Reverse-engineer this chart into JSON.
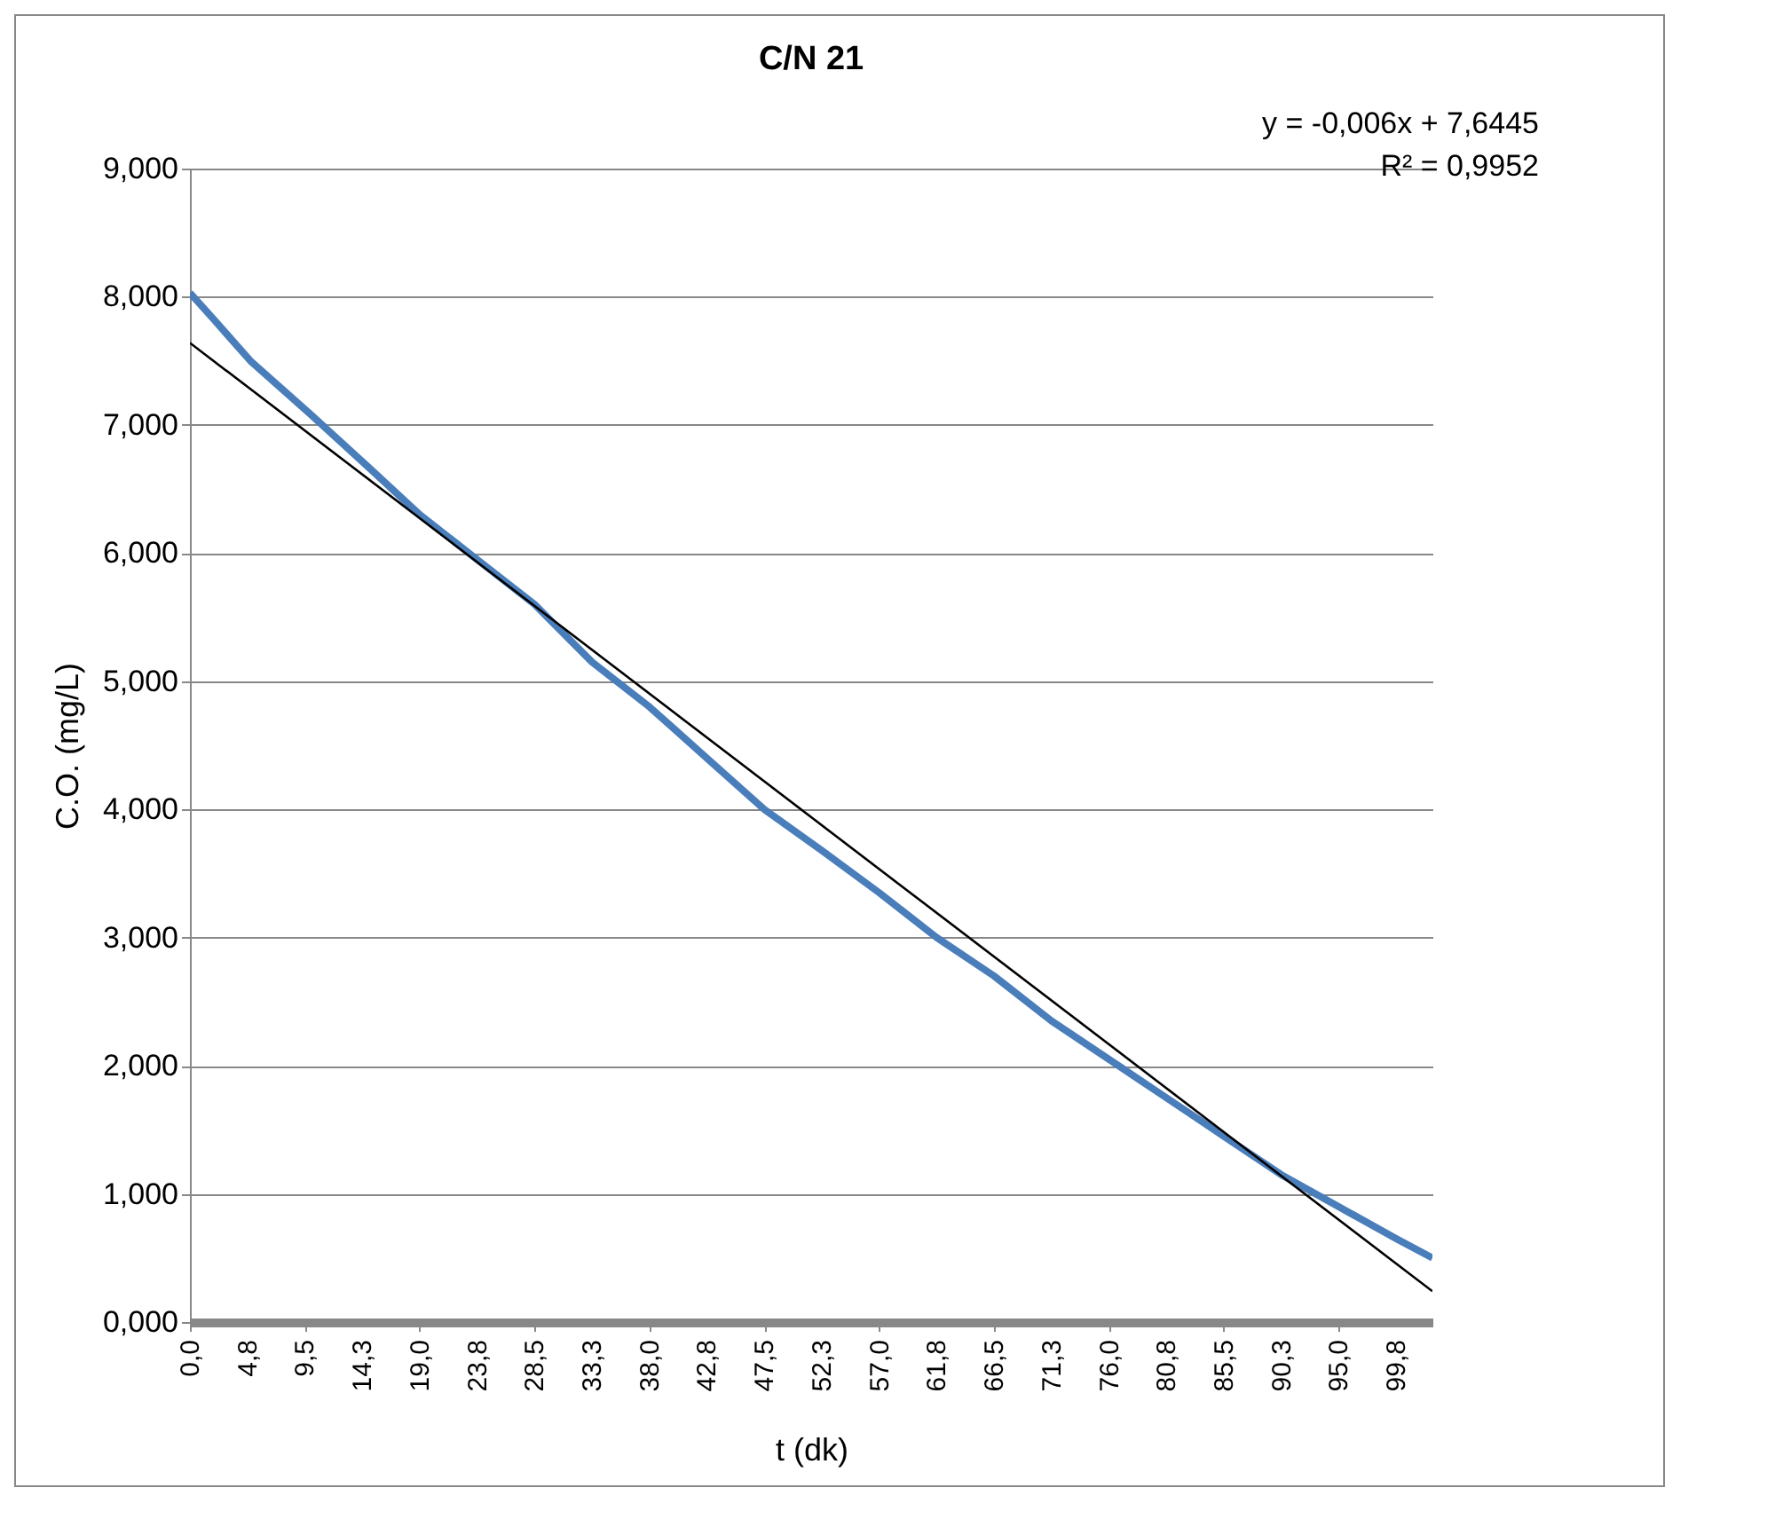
{
  "chart_data": {
    "type": "line",
    "title": "C/N 21",
    "xlabel": "t (dk)",
    "ylabel": "C.O. (mg/L)",
    "x": [
      0,
      2,
      5,
      10,
      15,
      19,
      23.75,
      28.5,
      33.25,
      38,
      42.75,
      47.5,
      52.25,
      57,
      61.75,
      66.5,
      71.25,
      76,
      80.75,
      85.5,
      90.25,
      95,
      99.75,
      102.75
    ],
    "series": [
      {
        "color": "#4a7ebb",
        "values": [
          8.03,
          7.82,
          7.5,
          7.08,
          6.65,
          6.3,
          5.95,
          5.6,
          5.15,
          4.8,
          4.4,
          4.0,
          3.68,
          3.35,
          3.0,
          2.7,
          2.35,
          2.05,
          1.75,
          1.45,
          1.15,
          0.9,
          0.65,
          0.5
        ]
      },
      {
        "type": "line",
        "color": "#000000",
        "x": [
          0,
          102.75
        ],
        "values": [
          7.64,
          0.24
        ]
      }
    ],
    "xlim": [
      0,
      102.75
    ],
    "xticks": [
      {
        "value": 0,
        "label": "0,0"
      },
      {
        "value": 4.75,
        "label": "4,8"
      },
      {
        "value": 9.5,
        "label": "9,5"
      },
      {
        "value": 14.25,
        "label": "14,3"
      },
      {
        "value": 19,
        "label": "19,0"
      },
      {
        "value": 23.75,
        "label": "23,8"
      },
      {
        "value": 28.5,
        "label": "28,5"
      },
      {
        "value": 33.25,
        "label": "33,3"
      },
      {
        "value": 38,
        "label": "38,0"
      },
      {
        "value": 42.75,
        "label": "42,8"
      },
      {
        "value": 47.5,
        "label": "47,5"
      },
      {
        "value": 52.25,
        "label": "52,3"
      },
      {
        "value": 57,
        "label": "57,0"
      },
      {
        "value": 61.75,
        "label": "61,8"
      },
      {
        "value": 66.5,
        "label": "66,5"
      },
      {
        "value": 71.25,
        "label": "71,3"
      },
      {
        "value": 76,
        "label": "76,0"
      },
      {
        "value": 80.75,
        "label": "80,8"
      },
      {
        "value": 85.5,
        "label": "85,5"
      },
      {
        "value": 90.25,
        "label": "90,3"
      },
      {
        "value": 95,
        "label": "95,0"
      },
      {
        "value": 99.75,
        "label": "99,8"
      }
    ],
    "ylim": [
      0,
      9
    ],
    "yticks": [
      {
        "value": 0,
        "label": "0,000"
      },
      {
        "value": 1,
        "label": "1,000"
      },
      {
        "value": 2,
        "label": "2,000"
      },
      {
        "value": 3,
        "label": "3,000"
      },
      {
        "value": 4,
        "label": "4,000"
      },
      {
        "value": 5,
        "label": "5,000"
      },
      {
        "value": 6,
        "label": "6,000"
      },
      {
        "value": 7,
        "label": "7,000"
      },
      {
        "value": 8,
        "label": "8,000"
      },
      {
        "value": 9,
        "label": "9,000"
      }
    ],
    "grid": "y",
    "annotations": [
      "y = -0,006x + 7,6445",
      "R² = 0,9952"
    ]
  }
}
